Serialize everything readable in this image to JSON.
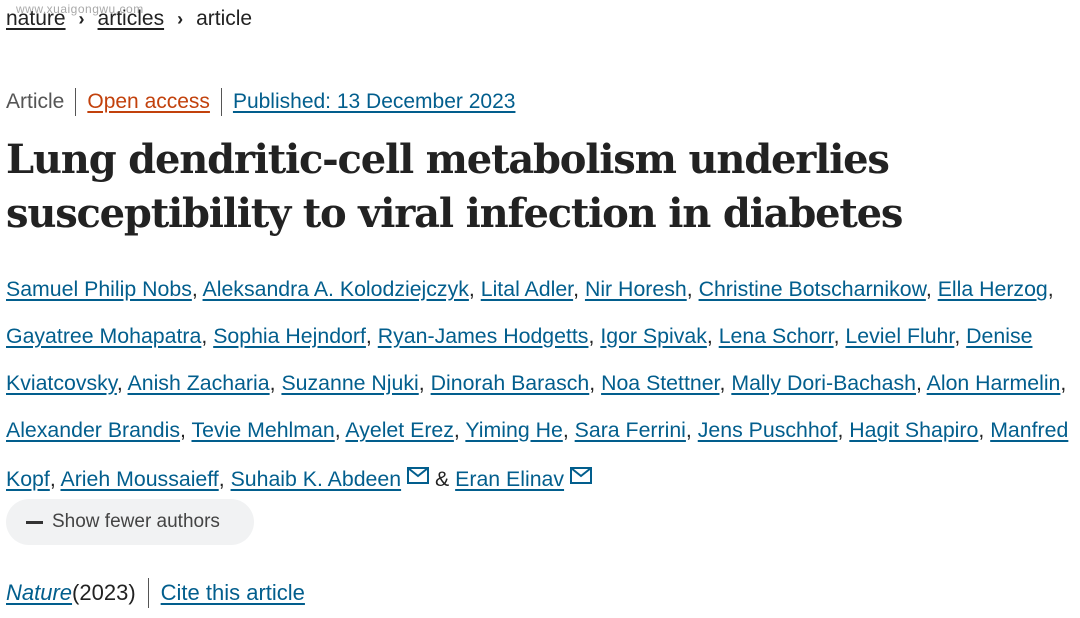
{
  "watermark": "www.xuaigongwu.com",
  "breadcrumb": {
    "items": [
      "nature",
      "articles",
      "article"
    ],
    "separator": "›"
  },
  "meta": {
    "type": "Article",
    "access": "Open access",
    "published": "Published: 13 December 2023"
  },
  "title": {
    "line1": "Lung dendritic-cell metabolism underlies",
    "line2": "susceptibility to viral infection in diabetes"
  },
  "authors": {
    "list": [
      "Samuel Philip Nobs",
      "Aleksandra A. Kolodziejczyk",
      "Lital Adler",
      "Nir Horesh",
      "Christine Botscharnikow",
      "Ella Herzog",
      "Gayatree Mohapatra",
      "Sophia Hejndorf",
      "Ryan-James Hodgetts",
      "Igor Spivak",
      "Lena Schorr",
      "Leviel Fluhr",
      "Denise Kviatcovsky",
      "Anish Zacharia",
      "Suzanne Njuki",
      "Dinorah Barasch",
      "Noa Stettner",
      "Mally Dori-Bachash",
      "Alon Harmelin",
      "Alexander Brandis",
      "Tevie Mehlman",
      "Ayelet Erez",
      "Yiming He",
      "Sara Ferrini",
      "Jens Puschhof",
      "Hagit Shapiro",
      "Manfred Kopf",
      "Arieh Moussaieff",
      "Suhaib K. Abdeen",
      "Eran Elinav"
    ],
    "corresponding": [
      "Suhaib K. Abdeen",
      "Eran Elinav"
    ],
    "separator": ", ",
    "final_separator": " & ",
    "mail_icon": "envelope-icon"
  },
  "show_fewer": {
    "label": "Show fewer authors",
    "icon": "minus-icon"
  },
  "citation": {
    "journal": "Nature",
    "year": " (2023)",
    "cite_label": "Cite this article"
  },
  "colors": {
    "link": "#025e8d",
    "open_access": "#c2410c",
    "text": "#222222",
    "muted": "#555555",
    "button_bg": "#f1f2f3"
  }
}
